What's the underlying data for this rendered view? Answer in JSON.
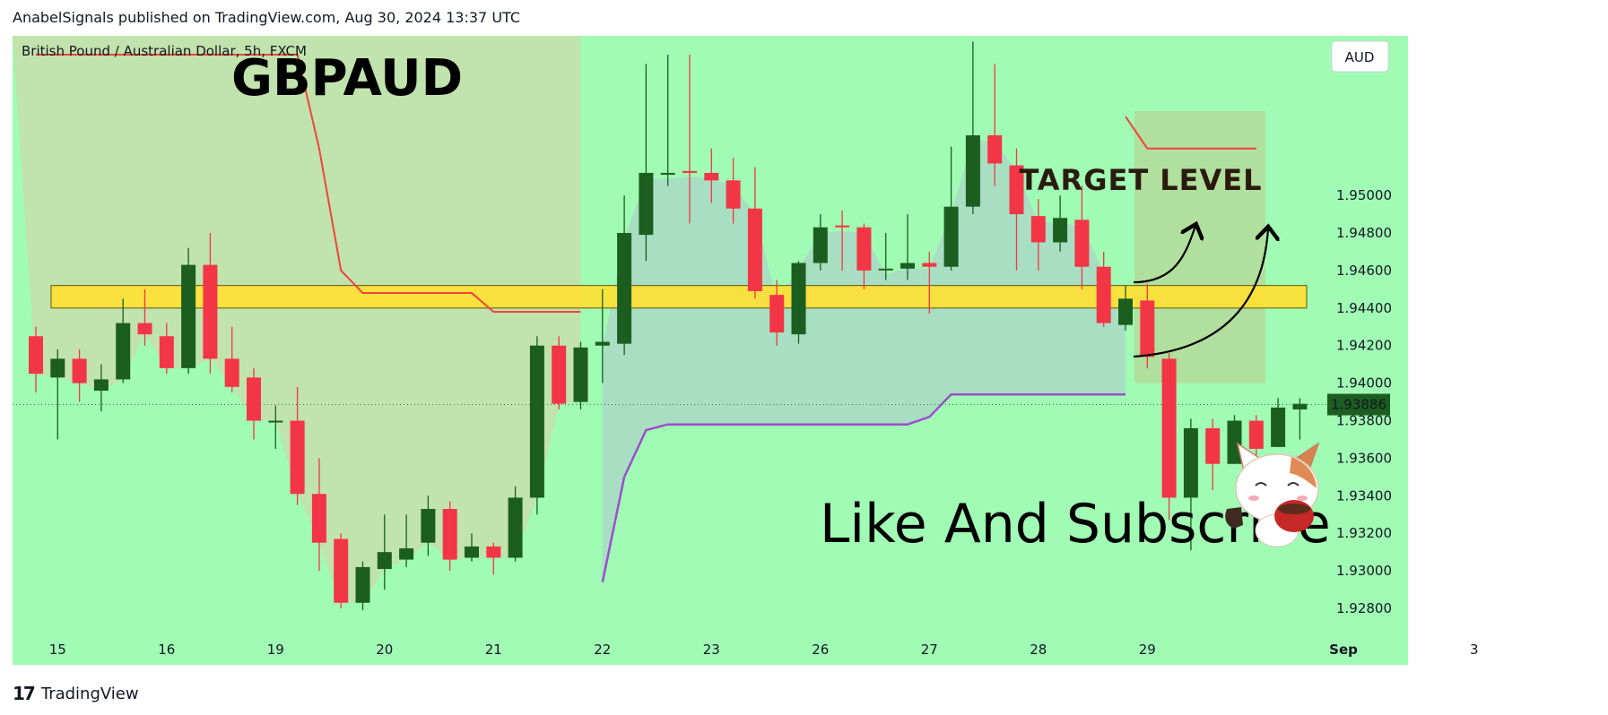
{
  "header": {
    "publisher_line": "AnabelSignals published on TradingView.com, Aug 30, 2024 13:37 UTC"
  },
  "footer": {
    "brand": "TradingView",
    "logo_icon": "tradingview-logo-icon"
  },
  "colors": {
    "background": "#a0fbb4",
    "bull": "#1b5e20",
    "bear": "#f23645",
    "target_zone": "#ffe135",
    "upper_line": "#f0443c",
    "lower_line": "#9c4dcc",
    "badge_bg": "#1b5e20"
  },
  "chart_data": {
    "type": "candlestick",
    "symbol_line": "British Pound / Australian Dollar, 5h, FXCM",
    "title": "GBPAUD",
    "currency": "AUD",
    "last_price": "1.93886",
    "last_value": 1.93886,
    "ylim": [
      1.927,
      1.9585
    ],
    "y_ticks": [
      "1.95000",
      "1.94800",
      "1.94600",
      "1.94400",
      "1.94200",
      "1.94000",
      "1.93800",
      "1.93600",
      "1.93400",
      "1.93200",
      "1.93000",
      "1.92800"
    ],
    "x_ticks": [
      {
        "label": "15",
        "i": 1
      },
      {
        "label": "16",
        "i": 6
      },
      {
        "label": "19",
        "i": 11
      },
      {
        "label": "20",
        "i": 16
      },
      {
        "label": "21",
        "i": 21
      },
      {
        "label": "22",
        "i": 26
      },
      {
        "label": "23",
        "i": 31
      },
      {
        "label": "26",
        "i": 36
      },
      {
        "label": "27",
        "i": 41
      },
      {
        "label": "28",
        "i": 46
      },
      {
        "label": "29",
        "i": 51
      },
      {
        "label": "Sep",
        "i": 60
      },
      {
        "label": "3",
        "i": 66
      }
    ],
    "candles": [
      [
        1.9425,
        1.9405,
        1.943,
        1.9395
      ],
      [
        1.9403,
        1.9413,
        1.9418,
        1.937
      ],
      [
        1.9413,
        1.94,
        1.9418,
        1.939
      ],
      [
        1.9396,
        1.9402,
        1.941,
        1.9385
      ],
      [
        1.9402,
        1.9432,
        1.9445,
        1.94
      ],
      [
        1.9432,
        1.9426,
        1.945,
        1.942
      ],
      [
        1.9425,
        1.9408,
        1.9432,
        1.9405
      ],
      [
        1.9408,
        1.9463,
        1.9472,
        1.9405
      ],
      [
        1.9463,
        1.9413,
        1.948,
        1.9405
      ],
      [
        1.9413,
        1.9398,
        1.943,
        1.9395
      ],
      [
        1.9403,
        1.938,
        1.9408,
        1.937
      ],
      [
        1.938,
        1.938,
        1.9388,
        1.9365
      ],
      [
        1.938,
        1.9341,
        1.9398,
        1.9335
      ],
      [
        1.9341,
        1.9315,
        1.936,
        1.93
      ],
      [
        1.9317,
        1.9283,
        1.932,
        1.928
      ],
      [
        1.9283,
        1.9302,
        1.9305,
        1.9279
      ],
      [
        1.9301,
        1.931,
        1.933,
        1.929
      ],
      [
        1.9306,
        1.9312,
        1.933,
        1.9302
      ],
      [
        1.9315,
        1.9333,
        1.934,
        1.9308
      ],
      [
        1.9333,
        1.9306,
        1.9337,
        1.93
      ],
      [
        1.9307,
        1.9313,
        1.932,
        1.9305
      ],
      [
        1.9313,
        1.9307,
        1.9315,
        1.9298
      ],
      [
        1.9307,
        1.9339,
        1.9345,
        1.9305
      ],
      [
        1.9339,
        1.942,
        1.9425,
        1.933
      ],
      [
        1.942,
        1.9389,
        1.9425,
        1.9386
      ],
      [
        1.939,
        1.9419,
        1.9422,
        1.9386
      ],
      [
        1.942,
        1.9422,
        1.945,
        1.94
      ],
      [
        1.9421,
        1.948,
        1.95,
        1.9415
      ],
      [
        1.9479,
        1.9512,
        1.957,
        1.9465
      ],
      [
        1.9512,
        1.9512,
        1.9575,
        1.9505
      ],
      [
        1.9513,
        1.9512,
        1.9575,
        1.9485
      ],
      [
        1.9512,
        1.9508,
        1.9525,
        1.9496
      ],
      [
        1.9508,
        1.9493,
        1.952,
        1.9485
      ],
      [
        1.9493,
        1.9449,
        1.9515,
        1.9445
      ],
      [
        1.9447,
        1.9427,
        1.9455,
        1.942
      ],
      [
        1.9426,
        1.9464,
        1.9465,
        1.9421
      ],
      [
        1.9464,
        1.9483,
        1.949,
        1.946
      ],
      [
        1.9484,
        1.9483,
        1.9492,
        1.946
      ],
      [
        1.9483,
        1.946,
        1.9485,
        1.945
      ],
      [
        1.9461,
        1.9461,
        1.948,
        1.9455
      ],
      [
        1.9461,
        1.9464,
        1.949,
        1.9455
      ],
      [
        1.9464,
        1.9462,
        1.947,
        1.9437
      ],
      [
        1.9462,
        1.9494,
        1.9526,
        1.946
      ],
      [
        1.9494,
        1.9532,
        1.9582,
        1.949
      ],
      [
        1.9532,
        1.9517,
        1.957,
        1.9505
      ],
      [
        1.9516,
        1.949,
        1.9525,
        1.946
      ],
      [
        1.9489,
        1.9475,
        1.9498,
        1.946
      ],
      [
        1.9475,
        1.9488,
        1.95,
        1.947
      ],
      [
        1.9487,
        1.9462,
        1.9505,
        1.945
      ],
      [
        1.9462,
        1.9432,
        1.947,
        1.943
      ],
      [
        1.9431,
        1.9445,
        1.9452,
        1.9428
      ],
      [
        1.9444,
        1.9414,
        1.9453,
        1.9408
      ],
      [
        1.9413,
        1.9339,
        1.9416,
        1.9327
      ],
      [
        1.9339,
        1.9376,
        1.9381,
        1.9311
      ],
      [
        1.9376,
        1.9357,
        1.9381,
        1.9343
      ],
      [
        1.9357,
        1.938,
        1.9383,
        1.9357
      ],
      [
        1.938,
        1.9365,
        1.9383,
        1.9336
      ],
      [
        1.9366,
        1.9387,
        1.9392,
        1.9366
      ],
      [
        1.9386,
        1.9389,
        1.9392,
        1.937
      ]
    ],
    "target_zone": {
      "from": 1.944,
      "to": 1.9452,
      "label": "TARGET LEVEL"
    },
    "upper_line": [
      [
        0,
        1.9575
      ],
      [
        12,
        1.9575
      ],
      [
        13,
        1.9525
      ],
      [
        14,
        1.946
      ],
      [
        15,
        1.9448
      ],
      [
        20,
        1.9448
      ],
      [
        21,
        1.9438
      ],
      [
        25,
        1.9438
      ]
    ],
    "lower_line": [
      [
        26,
        1.9294
      ],
      [
        27,
        1.935
      ],
      [
        28,
        1.9375
      ],
      [
        29,
        1.9378
      ],
      [
        40,
        1.9378
      ],
      [
        41,
        1.9382
      ],
      [
        42,
        1.9394
      ],
      [
        50,
        1.9394
      ]
    ],
    "upper_line2": [
      [
        50,
        1.9542
      ],
      [
        51,
        1.9525
      ],
      [
        56,
        1.9525
      ]
    ],
    "shaded_regions": [
      {
        "from_i": 0,
        "to_i": 25,
        "color": "#c7deac"
      },
      {
        "from_i": 26,
        "to_i": 50,
        "color": "#a9dcc4"
      },
      {
        "from_i": 50,
        "to_i": 56,
        "color": "#b2dc9a"
      }
    ],
    "annotation": "Like And Subscribe",
    "mascot_icon": "cat-coffee-mascot-icon"
  }
}
